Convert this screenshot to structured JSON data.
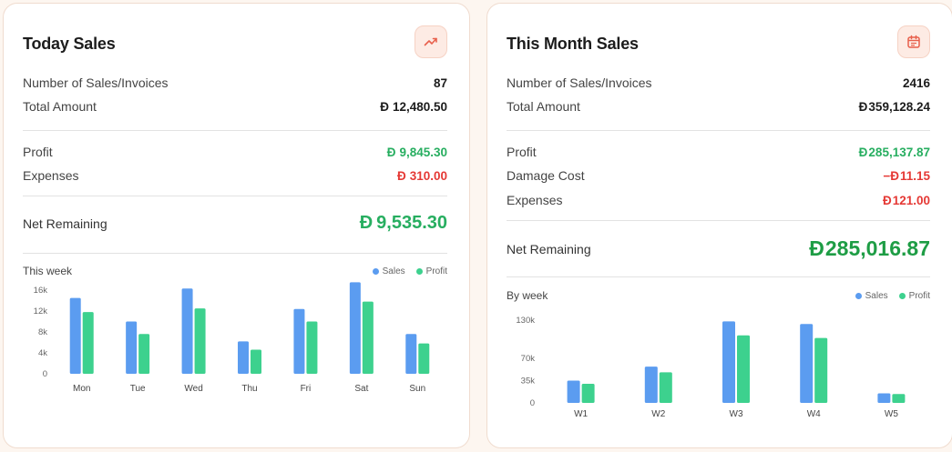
{
  "colors": {
    "sales": "#5b9cf0",
    "profit": "#3dd18e",
    "green": "#27ae60",
    "red": "#e53935"
  },
  "today": {
    "title": "Today Sales",
    "icon": "trending-up-icon",
    "invoices_label": "Number of Sales/Invoices",
    "invoices_value": "87",
    "total_label": "Total Amount",
    "currency": "Đ",
    "total_value": "12,480.50",
    "profit_label": "Profit",
    "profit_value": "9,845.30",
    "expenses_label": "Expenses",
    "expenses_value": "310.00",
    "net_label": "Net Remaining",
    "net_value": "9,535.30",
    "chart_title": "This week",
    "legend_sales": "Sales",
    "legend_profit": "Profit"
  },
  "month": {
    "title": "This Month Sales",
    "icon": "calendar-icon",
    "invoices_label": "Number of Sales/Invoices",
    "invoices_value": "2416",
    "total_label": "Total Amount",
    "currency": "Đ",
    "total_value": "359,128.24",
    "profit_label": "Profit",
    "profit_value": "285,137.87",
    "damage_label": "Damage Cost",
    "damage_prefix": "−",
    "damage_value": "11.15",
    "expenses_label": "Expenses",
    "expenses_value": "121.00",
    "net_label": "Net Remaining",
    "net_value": "285,016.87",
    "chart_title": "By week",
    "legend_sales": "Sales",
    "legend_profit": "Profit"
  },
  "chart_data": [
    {
      "type": "bar",
      "title": "This week",
      "categories": [
        "Mon",
        "Tue",
        "Wed",
        "Thu",
        "Fri",
        "Sat",
        "Sun"
      ],
      "y_ticks": [
        "16k",
        "12k",
        "8k",
        "4k",
        "0"
      ],
      "ylim": [
        0,
        16000
      ],
      "series": [
        {
          "name": "Sales",
          "values": [
            14500,
            10000,
            16300,
            6200,
            12400,
            17500,
            7600
          ]
        },
        {
          "name": "Profit",
          "values": [
            11800,
            7600,
            12500,
            4600,
            10000,
            13800,
            5800
          ]
        }
      ]
    },
    {
      "type": "bar",
      "title": "By week",
      "categories": [
        "W1",
        "W2",
        "W3",
        "W4",
        "W5"
      ],
      "y_ticks": [
        "130k",
        "70k",
        "35k",
        "0"
      ],
      "y_tick_values": [
        130000,
        70000,
        35000,
        0
      ],
      "ylim": [
        0,
        130000
      ],
      "series": [
        {
          "name": "Sales",
          "values": [
            35000,
            57000,
            128000,
            124000,
            15000
          ]
        },
        {
          "name": "Profit",
          "values": [
            30000,
            48000,
            106000,
            102000,
            14000
          ]
        }
      ]
    }
  ]
}
